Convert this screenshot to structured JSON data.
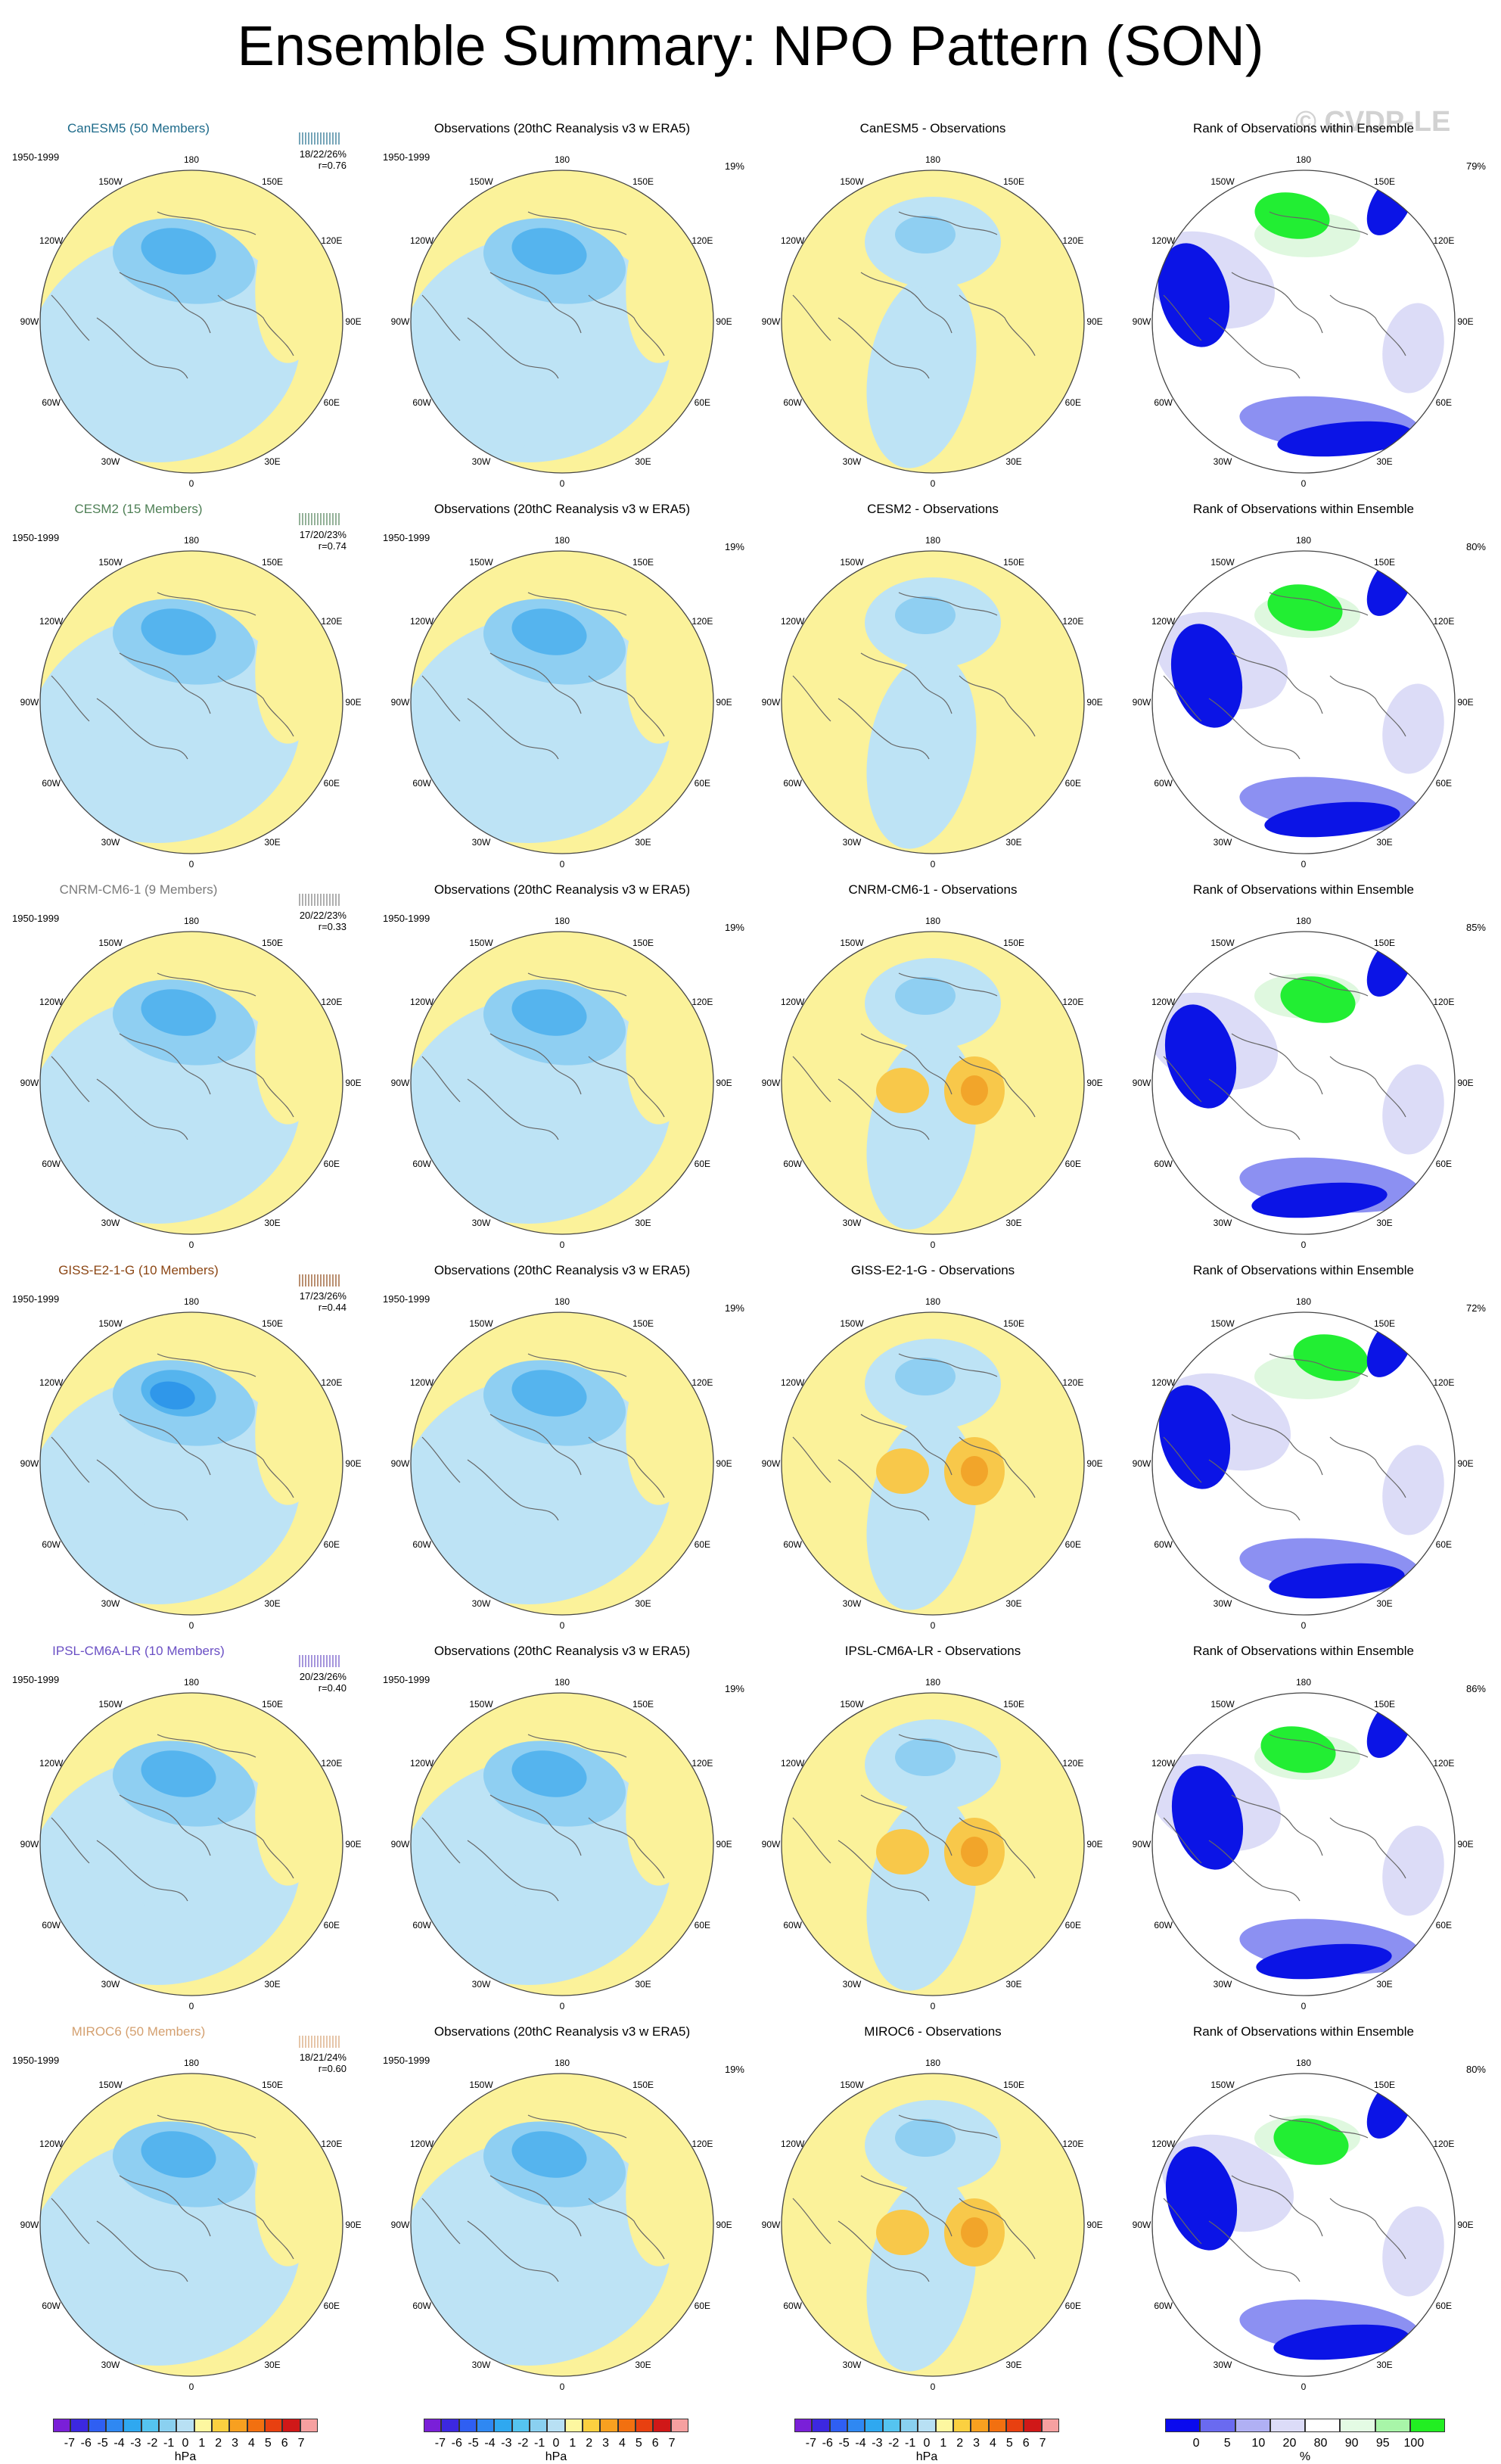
{
  "title": "Ensemble Summary: NPO Pattern (SON)",
  "watermark": "© CVDP-LE",
  "longitude_labels": [
    "180",
    "150E",
    "120E",
    "90E",
    "60E",
    "30E",
    "0",
    "30W",
    "60W",
    "90W",
    "120W",
    "150W"
  ],
  "rows": [
    {
      "model": "CanESM5 (50 Members)",
      "model_color": "#1d6a8a",
      "years": "1950-1999",
      "stats": "18/22/26%",
      "r": "r=0.76",
      "obs_title": "Observations (20thC Reanalysis v3 w ERA5)",
      "obs_years": "1950-1999",
      "obs_pct": "19%",
      "diff_title": "CanESM5 - Observations",
      "rank_title": "Rank of Observations within Ensemble",
      "rank_pct": "79%"
    },
    {
      "model": "CESM2 (15 Members)",
      "model_color": "#4e7f55",
      "years": "1950-1999",
      "stats": "17/20/23%",
      "r": "r=0.74",
      "obs_title": "Observations (20thC Reanalysis v3 w ERA5)",
      "obs_years": "1950-1999",
      "obs_pct": "19%",
      "diff_title": "CESM2 - Observations",
      "rank_title": "Rank of Observations within Ensemble",
      "rank_pct": "80%"
    },
    {
      "model": "CNRM-CM6-1 (9 Members)",
      "model_color": "#7a7a7a",
      "years": "1950-1999",
      "stats": "20/22/23%",
      "r": "r=0.33",
      "obs_title": "Observations (20thC Reanalysis v3 w ERA5)",
      "obs_years": "1950-1999",
      "obs_pct": "19%",
      "diff_title": "CNRM-CM6-1 - Observations",
      "rank_title": "Rank of Observations within Ensemble",
      "rank_pct": "85%"
    },
    {
      "model": "GISS-E2-1-G (10 Members)",
      "model_color": "#8b4513",
      "years": "1950-1999",
      "stats": "17/23/26%",
      "r": "r=0.44",
      "obs_title": "Observations (20thC Reanalysis v3 w ERA5)",
      "obs_years": "1950-1999",
      "obs_pct": "19%",
      "diff_title": "GISS-E2-1-G - Observations",
      "rank_title": "Rank of Observations within Ensemble",
      "rank_pct": "72%"
    },
    {
      "model": "IPSL-CM6A-LR (10 Members)",
      "model_color": "#6a4fc4",
      "years": "1950-1999",
      "stats": "20/23/26%",
      "r": "r=0.40",
      "obs_title": "Observations (20thC Reanalysis v3 w ERA5)",
      "obs_years": "1950-1999",
      "obs_pct": "19%",
      "diff_title": "IPSL-CM6A-LR - Observations",
      "rank_title": "Rank of Observations within Ensemble",
      "rank_pct": "86%"
    },
    {
      "model": "MIROC6 (50 Members)",
      "model_color": "#d4a070",
      "years": "1950-1999",
      "stats": "18/21/24%",
      "r": "r=0.60",
      "obs_title": "Observations (20thC Reanalysis v3 w ERA5)",
      "obs_years": "1950-1999",
      "obs_pct": "19%",
      "diff_title": "MIROC6 - Observations",
      "rank_title": "Rank of Observations within Ensemble",
      "rank_pct": "80%"
    }
  ],
  "colorbar_hpa": {
    "labels": [
      "-7",
      "-6",
      "-5",
      "-4",
      "-3",
      "-2",
      "-1",
      "0",
      "1",
      "2",
      "3",
      "4",
      "5",
      "6",
      "7"
    ],
    "colors": [
      "#7a1fd8",
      "#3c28e0",
      "#2f5ff2",
      "#2f88f2",
      "#2fa8f0",
      "#55c4f0",
      "#8ad0f0",
      "#b8e0f4",
      "#fdf7a0",
      "#fbd040",
      "#f8a020",
      "#f27010",
      "#e84010",
      "#d01818",
      "#f6a0a0"
    ],
    "unit": "hPa"
  },
  "colorbar_rank": {
    "labels": [
      "0",
      "5",
      "10",
      "20",
      "80",
      "90",
      "95",
      "100"
    ],
    "colors": [
      "#0a0aee",
      "#6a6af0",
      "#b0b0f4",
      "#dcdcf8",
      "#ffffff",
      "#e4fbe4",
      "#a8f5a8",
      "#22ee22"
    ],
    "unit": "%"
  },
  "colors": {
    "pos": "#fbf29a",
    "neg1": "#bde3f5",
    "neg2": "#8fcff2",
    "neg3": "#55b4ee",
    "neg4": "#2f97ea",
    "pos2": "#f8c84a",
    "pos3": "#f2a52a",
    "rank_blue": "#0b14e6",
    "rank_lblue": "#8c90f2",
    "rank_pale": "#dcdcf7",
    "rank_green": "#22ee33",
    "rank_lgreen": "#dff8df",
    "coast": "#666666"
  }
}
